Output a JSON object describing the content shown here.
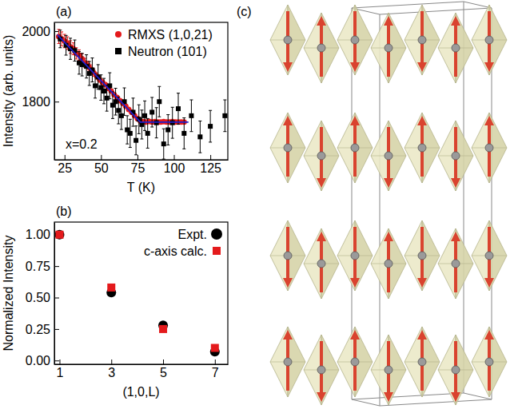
{
  "chart_data": [
    {
      "type": "scatter",
      "panel_label": "(a)",
      "xlabel": "T (K)",
      "ylabel": "Intensity (arb. units)",
      "xlim": [
        18,
        137
      ],
      "ylim": [
        1635,
        2025
      ],
      "xticks": [
        25,
        50,
        75,
        100,
        125
      ],
      "yticks": [
        1800,
        2000
      ],
      "annotations": [
        "x=0.2"
      ],
      "legend": "upper center",
      "series": [
        {
          "name": "RMXS (1,0,21)",
          "color": "#e41a1c",
          "marker": "circle",
          "x": [
            21,
            23,
            25,
            27,
            29,
            31,
            33,
            35,
            37,
            39,
            41,
            43,
            45,
            47,
            49,
            51,
            53,
            55,
            57,
            59,
            61,
            63,
            65,
            67,
            69,
            71,
            73,
            75,
            77,
            79,
            81,
            83,
            85,
            87,
            89,
            91,
            93,
            95,
            97,
            99,
            101,
            103,
            105,
            107
          ],
          "values": [
            1985,
            1978,
            1972,
            1966,
            1955,
            1950,
            1937,
            1932,
            1922,
            1910,
            1903,
            1893,
            1882,
            1873,
            1863,
            1855,
            1848,
            1838,
            1830,
            1820,
            1812,
            1803,
            1795,
            1787,
            1778,
            1770,
            1760,
            1752,
            1745,
            1743,
            1742,
            1744,
            1742,
            1743,
            1742,
            1742,
            1743,
            1742,
            1742,
            1743,
            1742,
            1742,
            1742,
            1742
          ],
          "errors": [
            20,
            20,
            19,
            18,
            18,
            17,
            16,
            15,
            14,
            13,
            12,
            11,
            10,
            9,
            8,
            7,
            6,
            6,
            5,
            5,
            5,
            4,
            4,
            4,
            4,
            3,
            3,
            3,
            3,
            2,
            2,
            2,
            2,
            2,
            2,
            2,
            2,
            2,
            2,
            2,
            2,
            2,
            2,
            2
          ]
        },
        {
          "name": "Neutron (101)",
          "color": "#000000",
          "marker": "square",
          "x": [
            22,
            26,
            29,
            32,
            35,
            37,
            40,
            42,
            44,
            46,
            48,
            50,
            52,
            54,
            56,
            58,
            60,
            62,
            64,
            66,
            68,
            70,
            72,
            74,
            76,
            78,
            80,
            82,
            85,
            88,
            90,
            93,
            96,
            99,
            103,
            107,
            112,
            118,
            125,
            135
          ],
          "values": [
            1978,
            1960,
            1950,
            1945,
            1910,
            1905,
            1900,
            1880,
            1890,
            1845,
            1870,
            1840,
            1830,
            1810,
            1845,
            1790,
            1800,
            1775,
            1760,
            1800,
            1720,
            1710,
            1770,
            1690,
            1750,
            1735,
            1760,
            1710,
            1770,
            1740,
            1800,
            1680,
            1720,
            1740,
            1780,
            1710,
            1760,
            1700,
            1730,
            1760
          ],
          "errors": [
            25,
            28,
            30,
            30,
            32,
            32,
            33,
            34,
            34,
            35,
            35,
            36,
            36,
            37,
            37,
            38,
            38,
            38,
            39,
            39,
            40,
            40,
            40,
            41,
            41,
            41,
            42,
            42,
            42,
            43,
            43,
            43,
            43,
            44,
            44,
            44,
            45,
            45,
            45,
            45
          ]
        },
        {
          "type": "line",
          "color": "#1f1fcc",
          "x": [
            20,
            77,
            110
          ],
          "values": [
            1990,
            1742,
            1742
          ]
        }
      ]
    },
    {
      "type": "scatter",
      "panel_label": "(b)",
      "xlabel": "(1,0,L)",
      "ylabel": "Normalized Intensity",
      "xlim": [
        0.8,
        7.5
      ],
      "ylim": [
        -0.03,
        1.1
      ],
      "xticks": [
        1,
        3,
        5,
        7
      ],
      "yticks": [
        {
          "value": 0,
          "label": "0.00"
        },
        {
          "value": 0.25,
          "label": "0.25"
        },
        {
          "value": 0.5,
          "label": "0.50"
        },
        {
          "value": 0.75,
          "label": "0.75"
        },
        {
          "value": 1,
          "label": "1.00"
        }
      ],
      "legend": "upper right",
      "series": [
        {
          "name": "Expt.",
          "color": "#000000",
          "marker": "circle",
          "x": [
            1,
            3,
            5,
            7
          ],
          "values": [
            1.0,
            0.54,
            0.28,
            0.07
          ]
        },
        {
          "name": "c-axis calc.",
          "color": "#e41a1c",
          "marker": "square",
          "x": [
            1,
            3,
            5,
            7
          ],
          "values": [
            1.0,
            0.58,
            0.25,
            0.1
          ]
        }
      ]
    },
    {
      "type": "diagram",
      "panel_label": "(c)"
    }
  ]
}
